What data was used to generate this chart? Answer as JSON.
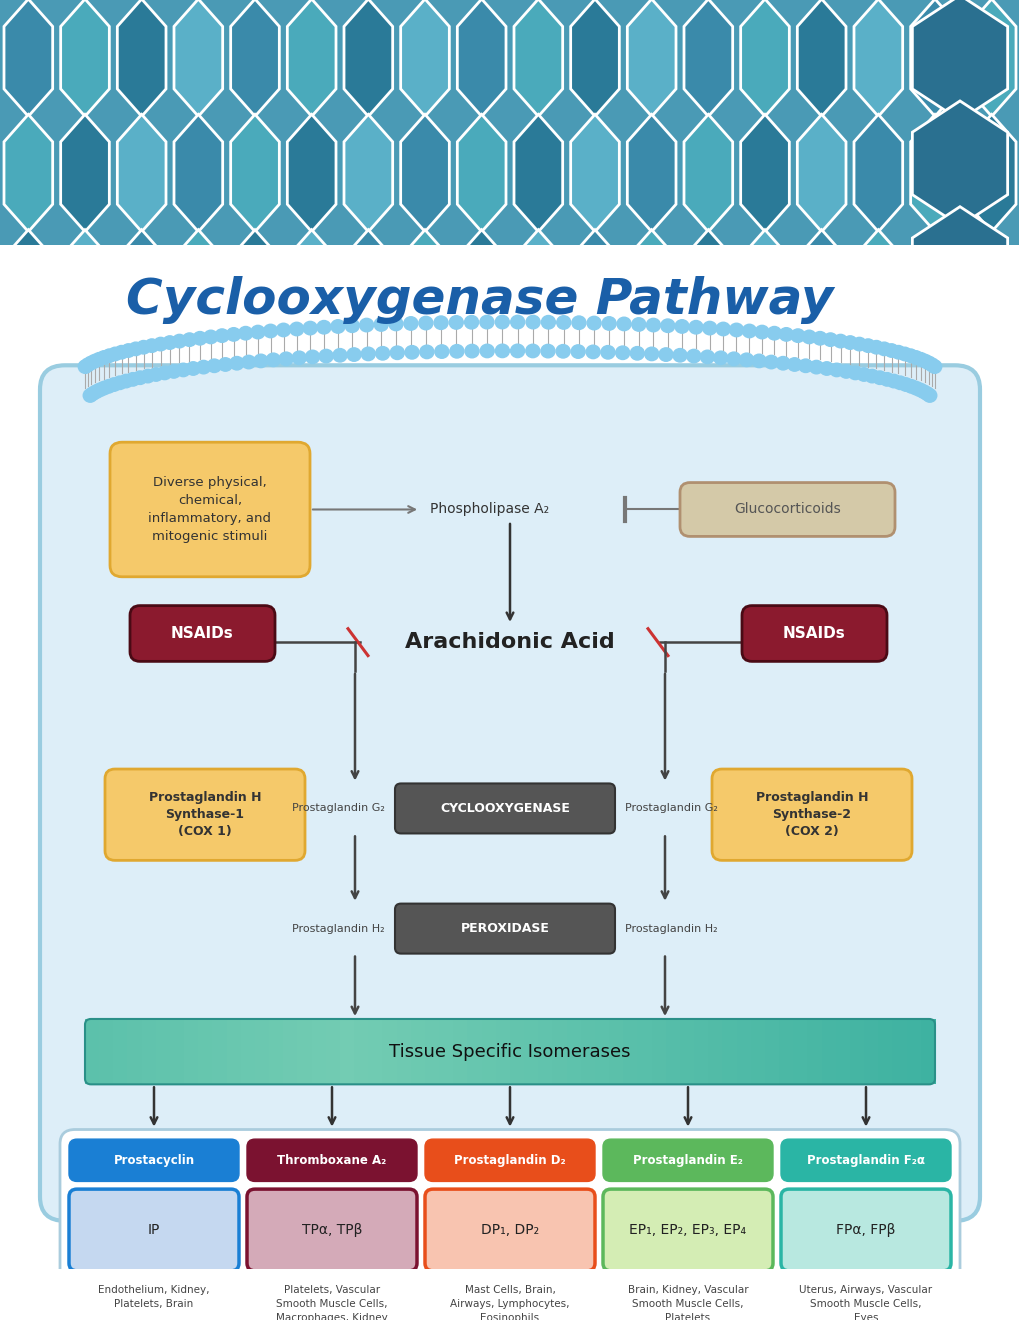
{
  "title": "Cyclooxygenase Pathway",
  "title_color": "#1a5fa8",
  "stimuli_box": {
    "text": "Diverse physical,\nchemical,\ninflammatory, and\nmitogenic stimuli",
    "color": "#f5c96a",
    "border": "#e0a830"
  },
  "phospholipase_text": "Phospholipase A₂",
  "glucocorticoids_box": {
    "text": "Glucocorticoids",
    "color": "#d4c9a8",
    "border": "#b09070"
  },
  "nsaids_color": "#8b1a2e",
  "nsaids_text": "NSAIDs",
  "arachidonic_text": "Arachidonic Acid",
  "cox_box_color": "#555555",
  "cox_text": "CYCLOOXYGENASE",
  "perox_text": "PEROXIDASE",
  "pg_g2_text": "Prostaglandin G₂",
  "pg_h2_text": "Prostaglandin H₂",
  "synthase1_box": {
    "text": "Prostaglandin H\nSynthase-1\n(COX 1)",
    "color": "#f5c96a",
    "border": "#e0a830"
  },
  "synthase2_box": {
    "text": "Prostaglandin H\nSynthase-2\n(COX 2)",
    "color": "#f5c96a",
    "border": "#e0a830"
  },
  "isomerases_text": "Tissue Specific Isomerases",
  "products": [
    {
      "header": "Prostacyclin",
      "header_bg": "#1a7fd4",
      "receptor": "IP",
      "receptor_bg": "#c5d8f0",
      "receptor_border": "#1a7fd4",
      "tissue": "Endothelium, Kidney,\nPlatelets, Brain"
    },
    {
      "header": "Thromboxane A₂",
      "header_bg": "#7b1230",
      "receptor": "TPα, TPβ",
      "receptor_bg": "#d4aab8",
      "receptor_border": "#7b1230",
      "tissue": "Platelets, Vascular\nSmooth Muscle Cells,\nMacrophages, Kidney"
    },
    {
      "header": "Prostaglandin D₂",
      "header_bg": "#e84e1b",
      "receptor": "DP₁, DP₂",
      "receptor_bg": "#f8c4b0",
      "receptor_border": "#e84e1b",
      "tissue": "Mast Cells, Brain,\nAirways, Lymphocytes,\nEosinophils"
    },
    {
      "header": "Prostaglandin E₂",
      "header_bg": "#5cb85c",
      "receptor": "EP₁, EP₂, EP₃, EP₄",
      "receptor_bg": "#d4edb4",
      "receptor_border": "#5cb85c",
      "tissue": "Brain, Kidney, Vascular\nSmooth Muscle Cells,\nPlatelets"
    },
    {
      "header": "Prostaglandin F₂α",
      "header_bg": "#2ab5a5",
      "receptor": "FPα, FPβ",
      "receptor_bg": "#b8e8e0",
      "receptor_border": "#2ab5a5",
      "tissue": "Uterus, Airways, Vascular\nSmooth Muscle Cells,\nEyes"
    }
  ]
}
